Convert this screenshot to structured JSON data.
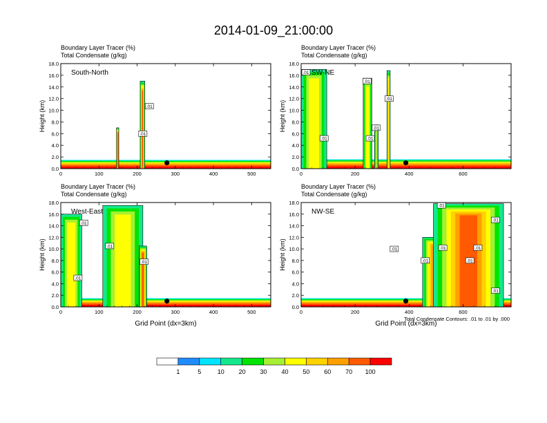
{
  "figure_title": "2014-01-09_21:00:00",
  "footnote": "Total Condensate Contours: .01 to .01 by .000",
  "colorbar": {
    "labels": [
      "1",
      "5",
      "10",
      "20",
      "30",
      "40",
      "50",
      "60",
      "70",
      "100"
    ],
    "colors": [
      "#ffffff",
      "#1e8cff",
      "#00e5ff",
      "#14e88c",
      "#00e400",
      "#a5f032",
      "#ffff00",
      "#ffd200",
      "#ffa000",
      "#ff5a00",
      "#ff0000"
    ]
  },
  "chart_data": [
    {
      "type": "heatmap",
      "subtitle_line1": "Boundary Layer Tracer   (%)",
      "subtitle_line2": "Total Condensate   (g/kg)",
      "panel_label": "South-North",
      "ylabel": "Height (km)",
      "xlabel": "",
      "xlim": [
        0,
        550
      ],
      "ylim": [
        0,
        18
      ],
      "xticks": [
        "0",
        "100",
        "200",
        "300",
        "400",
        "500"
      ],
      "yticks": [
        "0.0",
        "2.0",
        "4.0",
        "6.0",
        "8.0",
        "10.0",
        "12.0",
        "14.0",
        "16.0",
        "18.0"
      ],
      "contour_label": ".01",
      "marker": {
        "x": 278,
        "y": 1.0
      },
      "boundary_layer_top_km": 1.5,
      "tracer_columns": [
        {
          "x_from": 146,
          "x_to": 152,
          "top_km": 7.0,
          "peak": 70
        },
        {
          "x_from": 208,
          "x_to": 220,
          "top_km": 15.0,
          "peak": 70
        }
      ],
      "label_positions": [
        {
          "x": 232,
          "y": 10.7
        },
        {
          "x": 215,
          "y": 6.0
        }
      ]
    },
    {
      "type": "heatmap",
      "subtitle_line1": "Boundary Layer Tracer   (%)",
      "subtitle_line2": "Total Condensate   (g/kg)",
      "panel_label": "SW-NE",
      "ylabel": "Height (km)",
      "xlabel": "",
      "xlim": [
        0,
        778
      ],
      "ylim": [
        0,
        18
      ],
      "xticks": [
        "0",
        "200",
        "400",
        "600"
      ],
      "yticks": [
        "0.0",
        "2.0",
        "4.0",
        "6.0",
        "8.0",
        "10.0",
        "12.0",
        "14.0",
        "16.0",
        "18.0"
      ],
      "contour_label": ".01",
      "marker": {
        "x": 388,
        "y": 1.0
      },
      "boundary_layer_top_km": 1.6,
      "tracer_columns": [
        {
          "x_from": 0,
          "x_to": 95,
          "top_km": 17.0,
          "peak": 40
        },
        {
          "x_from": 230,
          "x_to": 262,
          "top_km": 15.5,
          "peak": 40
        },
        {
          "x_from": 272,
          "x_to": 286,
          "top_km": 7.5,
          "peak": 30
        },
        {
          "x_from": 318,
          "x_to": 330,
          "top_km": 16.8,
          "peak": 50
        }
      ],
      "label_positions": [
        {
          "x": 18,
          "y": 16.5
        },
        {
          "x": 244,
          "y": 15.0
        },
        {
          "x": 278,
          "y": 7.0
        },
        {
          "x": 256,
          "y": 5.2
        },
        {
          "x": 326,
          "y": 12.0
        },
        {
          "x": 85,
          "y": 5.2
        }
      ]
    },
    {
      "type": "heatmap",
      "subtitle_line1": "Boundary Layer Tracer   (%)",
      "subtitle_line2": "Total Condensate   (g/kg)",
      "panel_label": "West-East",
      "ylabel": "Height (km)",
      "xlabel": "Grid Point (dx=3km)",
      "xlim": [
        0,
        550
      ],
      "ylim": [
        0,
        18
      ],
      "xticks": [
        "0",
        "100",
        "200",
        "300",
        "400",
        "500"
      ],
      "yticks": [
        "0.0",
        "2.0",
        "4.0",
        "6.0",
        "8.0",
        "10.0",
        "12.0",
        "14.0",
        "16.0",
        "18.0"
      ],
      "contour_label": ".01",
      "marker": {
        "x": 278,
        "y": 1.0
      },
      "boundary_layer_top_km": 1.5,
      "tracer_columns": [
        {
          "x_from": 0,
          "x_to": 55,
          "top_km": 16.0,
          "peak": 40
        },
        {
          "x_from": 110,
          "x_to": 215,
          "top_km": 17.5,
          "peak": 40
        },
        {
          "x_from": 205,
          "x_to": 225,
          "top_km": 10.5,
          "peak": 70
        }
      ],
      "label_positions": [
        {
          "x": 60,
          "y": 14.5
        },
        {
          "x": 128,
          "y": 10.5
        },
        {
          "x": 218,
          "y": 7.8
        },
        {
          "x": 45,
          "y": 5.0
        }
      ]
    },
    {
      "type": "heatmap",
      "subtitle_line1": "Boundary Layer Tracer   (%)",
      "subtitle_line2": "Total Condensate   (g/kg)",
      "panel_label": "NW-SE",
      "ylabel": "Height (km)",
      "xlabel": "Grid Point (dx=3km)",
      "xlim": [
        0,
        778
      ],
      "ylim": [
        0,
        18
      ],
      "xticks": [
        "0",
        "200",
        "400",
        "600"
      ],
      "yticks": [
        "0.0",
        "2.0",
        "4.0",
        "6.0",
        "8.0",
        "10.0",
        "12.0",
        "14.0",
        "16.0",
        "18.0"
      ],
      "contour_label": ".01",
      "marker": {
        "x": 388,
        "y": 1.0
      },
      "boundary_layer_top_km": 1.5,
      "tracer_columns": [
        {
          "x_from": 450,
          "x_to": 540,
          "top_km": 12.0,
          "peak": 60
        },
        {
          "x_from": 490,
          "x_to": 750,
          "top_km": 17.8,
          "peak": 70
        }
      ],
      "label_positions": [
        {
          "x": 520,
          "y": 17.5
        },
        {
          "x": 720,
          "y": 15.0
        },
        {
          "x": 345,
          "y": 10.0
        },
        {
          "x": 525,
          "y": 10.2
        },
        {
          "x": 655,
          "y": 10.2
        },
        {
          "x": 460,
          "y": 8.0
        },
        {
          "x": 625,
          "y": 8.0
        },
        {
          "x": 720,
          "y": 2.8
        }
      ]
    }
  ]
}
